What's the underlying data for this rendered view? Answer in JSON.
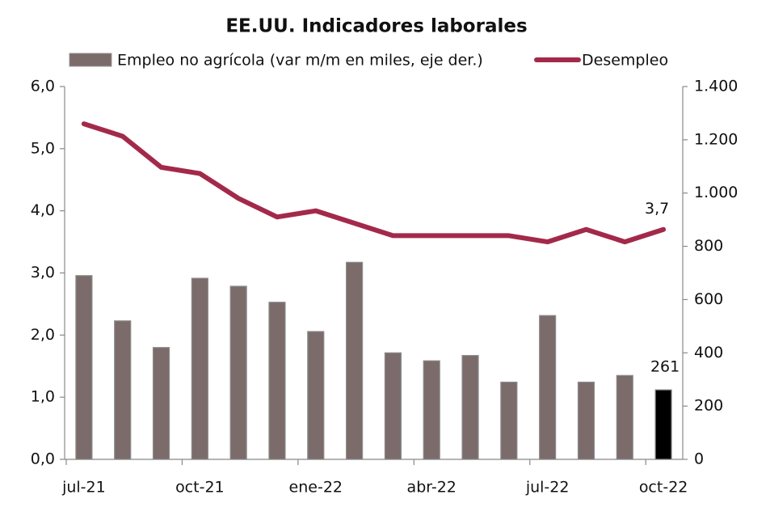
{
  "chart_data": {
    "type": "bar-line",
    "title": "EE.UU. Indicadores laborales",
    "categories": [
      "jul-21",
      null,
      null,
      "oct-21",
      null,
      null,
      "ene-22",
      null,
      null,
      "abr-22",
      null,
      null,
      "jul-22",
      null,
      null,
      "oct-22"
    ],
    "series": [
      {
        "name": "Empleo no agrícola (var m/m en miles, eje der.)",
        "type": "bar",
        "axis": "y2",
        "color": "#7b6b6b",
        "colors": [
          "#7b6b6b",
          "#7b6b6b",
          "#7b6b6b",
          "#7b6b6b",
          "#7b6b6b",
          "#7b6b6b",
          "#7b6b6b",
          "#7b6b6b",
          "#7b6b6b",
          "#7b6b6b",
          "#7b6b6b",
          "#7b6b6b",
          "#7b6b6b",
          "#7b6b6b",
          "#7b6b6b",
          "#000000"
        ],
        "values": [
          690,
          520,
          420,
          680,
          650,
          590,
          480,
          740,
          400,
          370,
          390,
          290,
          540,
          290,
          315,
          261
        ],
        "value_labels": [
          null,
          null,
          null,
          null,
          null,
          null,
          null,
          null,
          null,
          null,
          null,
          null,
          null,
          null,
          null,
          "261"
        ]
      },
      {
        "name": "Desempleo",
        "type": "line",
        "axis": "y",
        "color": "#a3294a",
        "values": [
          5.4,
          5.2,
          4.7,
          4.6,
          4.2,
          3.9,
          4.0,
          3.8,
          3.6,
          3.6,
          3.6,
          3.6,
          3.5,
          3.7,
          3.5,
          3.7
        ],
        "value_labels": [
          null,
          null,
          null,
          null,
          null,
          null,
          null,
          null,
          null,
          null,
          null,
          null,
          null,
          null,
          null,
          "3,7"
        ]
      }
    ],
    "ylim": [
      0,
      6
    ],
    "yticks": [
      {
        "value": 0,
        "label": "0,0"
      },
      {
        "value": 1,
        "label": "1,0"
      },
      {
        "value": 2,
        "label": "2,0"
      },
      {
        "value": 3,
        "label": "3,0"
      },
      {
        "value": 4,
        "label": "4,0"
      },
      {
        "value": 5,
        "label": "5,0"
      },
      {
        "value": 6,
        "label": "6,0"
      }
    ],
    "y2lim": [
      0,
      1400
    ],
    "y2ticks": [
      0,
      200,
      400,
      600,
      800,
      {
        "value": 1000,
        "label": "1.000"
      },
      {
        "value": 1200,
        "label": "1.200"
      },
      {
        "value": 1400,
        "label": "1.400"
      }
    ],
    "legend": "top"
  }
}
